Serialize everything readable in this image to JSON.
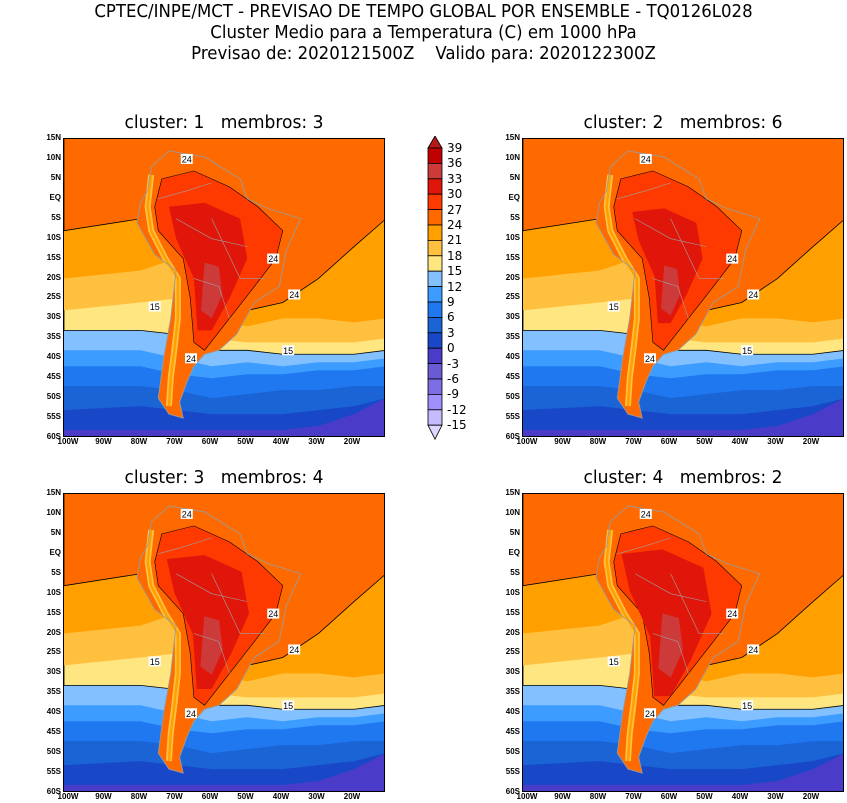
{
  "header": {
    "line1": "CPTEC/INPE/MCT - PREVISAO DE TEMPO GLOBAL POR ENSEMBLE - TQ0126L028",
    "line2": "Cluster Medio para a Temperatura (C) em 1000 hPa",
    "line3": "Previsao de: 2020121500Z    Valido para: 2020122300Z"
  },
  "panels": [
    {
      "title": "cluster: 1   membros: 3",
      "heat": 1.0
    },
    {
      "title": "cluster: 2   membros: 6",
      "heat": 0.9
    },
    {
      "title": "cluster: 3   membros: 4",
      "heat": 1.05
    },
    {
      "title": "cluster: 4   membros: 2",
      "heat": 1.15
    }
  ],
  "contour_labels": [
    "24",
    "24",
    "24",
    "24",
    "15",
    "15"
  ],
  "lat_labels": [
    "15N",
    "10N",
    "5N",
    "EQ",
    "5S",
    "10S",
    "15S",
    "20S",
    "25S",
    "30S",
    "35S",
    "40S",
    "45S",
    "50S",
    "55S",
    "60S"
  ],
  "lon_labels": [
    "100W",
    "90W",
    "80W",
    "70W",
    "60W",
    "50W",
    "40W",
    "30W",
    "20W"
  ],
  "colorbar": {
    "labels": [
      "39",
      "36",
      "33",
      "30",
      "27",
      "24",
      "21",
      "18",
      "15",
      "12",
      "9",
      "6",
      "3",
      "0",
      "-3",
      "-6",
      "-9",
      "-12",
      "-15"
    ],
    "colors": [
      "#b31a1a",
      "#c00000",
      "#cc3a3a",
      "#e0160a",
      "#ff3a00",
      "#ff6a00",
      "#ffa000",
      "#ffc040",
      "#ffe680",
      "#82c0ff",
      "#3c9cff",
      "#1f78f0",
      "#1a64d6",
      "#1848c8",
      "#4a3cc8",
      "#6a5ad6",
      "#7e6ee6",
      "#a090ff",
      "#c4bcff",
      "#dcd8ff"
    ]
  }
}
